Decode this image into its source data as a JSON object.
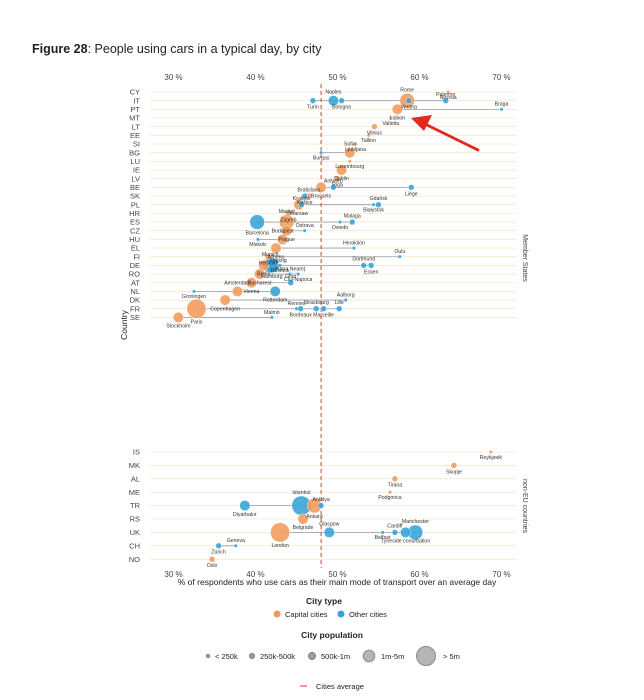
{
  "figure": {
    "label": "Figure 28",
    "caption": ": People using cars in a typical day, by city"
  },
  "colors": {
    "capital": "#f29a5b",
    "other": "#33a3d6",
    "average_line": "#e03a2a",
    "grid": "#efe3b8",
    "connector": "#9b9b9b",
    "arrow": "#e0291f"
  },
  "chart_data": {
    "type": "scatter",
    "xlabel": "% of respondents who use cars as their main mode of transport over an average day",
    "ylabel": "Country",
    "xlim": [
      25,
      73
    ],
    "xticks": [
      30,
      40,
      50,
      60,
      70
    ],
    "xtick_labels": [
      "30 %",
      "40 %",
      "50 %",
      "60 %",
      "70 %"
    ],
    "grid": "horizontal",
    "cities_average": 48,
    "groups": [
      {
        "label": "Member States",
        "countries": [
          "CY",
          "IT",
          "PT",
          "MT",
          "LT",
          "EE",
          "SI",
          "BG",
          "LU",
          "IE",
          "LV",
          "BE",
          "SK",
          "PL",
          "HR",
          "ES",
          "CZ",
          "HU",
          "EL",
          "FI",
          "DE",
          "RO",
          "AT",
          "NL",
          "DK",
          "FR",
          "SE"
        ]
      },
      {
        "label": "non-EU countries",
        "countries": [
          "IS",
          "MK",
          "AL",
          "ME",
          "TR",
          "RS",
          "UK",
          "CH",
          "NO"
        ]
      }
    ],
    "series": [
      {
        "name": "Capital cities",
        "points": [
          {
            "city": "Nicosia",
            "country": "CY",
            "x": 63.5,
            "size": 1
          },
          {
            "city": "Rome",
            "country": "IT",
            "x": 58.5,
            "size": 4
          },
          {
            "city": "Lisbon",
            "country": "PT",
            "x": 57.3,
            "size": 3
          },
          {
            "city": "Valletta",
            "country": "MT",
            "x": 56.5,
            "size": 1
          },
          {
            "city": "Vilnius",
            "country": "LT",
            "x": 54.5,
            "size": 2
          },
          {
            "city": "Tallinn",
            "country": "EE",
            "x": 53.8,
            "size": 1
          },
          {
            "city": "Ljubljana",
            "country": "SI",
            "x": 52.2,
            "size": 1
          },
          {
            "city": "Sofia",
            "country": "BG",
            "x": 51.5,
            "size": 3
          },
          {
            "city": "Luxembourg",
            "country": "LU",
            "x": 51.5,
            "size": 1
          },
          {
            "city": "Dublin",
            "country": "IE",
            "x": 50.5,
            "size": 3
          },
          {
            "city": "Riga",
            "country": "LV",
            "x": 50,
            "size": 2
          },
          {
            "city": "Brussels",
            "country": "BE",
            "x": 48,
            "size": 3
          },
          {
            "city": "Bratislava",
            "country": "SK",
            "x": 46.5,
            "size": 2
          },
          {
            "city": "Warsaw",
            "country": "PL",
            "x": 45.3,
            "size": 3
          },
          {
            "city": "Zagreb",
            "country": "HR",
            "x": 44,
            "size": 2
          },
          {
            "city": "Madrid",
            "country": "ES",
            "x": 43.8,
            "size": 4
          },
          {
            "city": "Prague",
            "country": "CZ",
            "x": 43.8,
            "size": 3
          },
          {
            "city": "Budapest",
            "country": "HU",
            "x": 43.3,
            "size": 3
          },
          {
            "city": "Athens",
            "country": "EL",
            "x": 42.5,
            "size": 3
          },
          {
            "city": "Helsinki",
            "country": "FI",
            "x": 41.5,
            "size": 2
          },
          {
            "city": "Berlin",
            "country": "DE",
            "x": 41,
            "size": 3
          },
          {
            "city": "Bucharest",
            "country": "RO",
            "x": 40.5,
            "size": 3
          },
          {
            "city": "Vienna",
            "country": "AT",
            "x": 39.5,
            "size": 3
          },
          {
            "city": "Amsterdam",
            "country": "NL",
            "x": 37.8,
            "size": 3
          },
          {
            "city": "Copenhagen",
            "country": "DK",
            "x": 36.3,
            "size": 3
          },
          {
            "city": "Paris",
            "country": "FR",
            "x": 32.8,
            "size": 5
          },
          {
            "city": "Stockholm",
            "country": "SE",
            "x": 30.6,
            "size": 3
          },
          {
            "city": "Reykjavik",
            "country": "IS",
            "x": 68.7,
            "size": 1
          },
          {
            "city": "Skopje",
            "country": "MK",
            "x": 64.2,
            "size": 2
          },
          {
            "city": "Tirana",
            "country": "AL",
            "x": 57,
            "size": 2
          },
          {
            "city": "Podgorica",
            "country": "ME",
            "x": 56.4,
            "size": 1
          },
          {
            "city": "Ankara",
            "country": "TR",
            "x": 47.2,
            "size": 4
          },
          {
            "city": "Belgrade",
            "country": "RS",
            "x": 45.8,
            "size": 3
          },
          {
            "city": "London",
            "country": "UK",
            "x": 43,
            "size": 5
          },
          {
            "city": "Oslo",
            "country": "NO",
            "x": 34.7,
            "size": 2
          }
        ]
      },
      {
        "name": "Other cities",
        "points": [
          {
            "city": "Turin",
            "country": "IT",
            "x": 47,
            "size": 2
          },
          {
            "city": "Naples",
            "country": "IT",
            "x": 49.5,
            "size": 3
          },
          {
            "city": "Bologna",
            "country": "IT",
            "x": 50.5,
            "size": 2
          },
          {
            "city": "Verona",
            "country": "IT",
            "x": 58.7,
            "size": 2
          },
          {
            "city": "Palermo",
            "country": "IT",
            "x": 63.2,
            "size": 2
          },
          {
            "city": "Braga",
            "country": "PT",
            "x": 70,
            "size": 1
          },
          {
            "city": "Burgas",
            "country": "BG",
            "x": 48,
            "size": 1
          },
          {
            "city": "Antwerp",
            "country": "BE",
            "x": 49.5,
            "size": 2
          },
          {
            "city": "Liège",
            "country": "BE",
            "x": 59,
            "size": 2
          },
          {
            "city": "Košice",
            "country": "SK",
            "x": 46,
            "size": 2
          },
          {
            "city": "Kraków",
            "country": "PL",
            "x": 45.6,
            "size": 2
          },
          {
            "city": "Białystok",
            "country": "PL",
            "x": 54.4,
            "size": 1
          },
          {
            "city": "Gdańsk",
            "country": "PL",
            "x": 55,
            "size": 2
          },
          {
            "city": "Barcelona",
            "country": "ES",
            "x": 40.2,
            "size": 4
          },
          {
            "city": "Oviedo",
            "country": "ES",
            "x": 50.3,
            "size": 1
          },
          {
            "city": "Malaga",
            "country": "ES",
            "x": 51.8,
            "size": 2
          },
          {
            "city": "Ostrava",
            "country": "CZ",
            "x": 46,
            "size": 1
          },
          {
            "city": "Miskolc",
            "country": "HU",
            "x": 40.3,
            "size": 1
          },
          {
            "city": "Heraklion",
            "country": "EL",
            "x": 52,
            "size": 1
          },
          {
            "city": "Oulu",
            "country": "FI",
            "x": 57.6,
            "size": 1
          },
          {
            "city": "Leipzig",
            "country": "DE",
            "x": 42.8,
            "size": 1
          },
          {
            "city": "Munich",
            "country": "DE",
            "x": 41.8,
            "size": 4
          },
          {
            "city": "Rostock",
            "country": "DE",
            "x": 43,
            "size": 1
          },
          {
            "city": "Dortmund",
            "country": "DE",
            "x": 53.2,
            "size": 2
          },
          {
            "city": "Essen",
            "country": "DE",
            "x": 54.1,
            "size": 2
          },
          {
            "city": "Hamburg",
            "country": "DE",
            "x": 42,
            "size": 4
          },
          {
            "city": "Cluj-Napoca",
            "country": "RO",
            "x": 45.2,
            "size": 1
          },
          {
            "city": "Piatra Neamț",
            "country": "RO",
            "x": 44.2,
            "size": 1
          },
          {
            "city": "Graz",
            "country": "AT",
            "x": 44.3,
            "size": 2
          },
          {
            "city": "Groningen",
            "country": "NL",
            "x": 32.5,
            "size": 1
          },
          {
            "city": "Rotterdam",
            "country": "NL",
            "x": 42.4,
            "size": 3
          },
          {
            "city": "Aalborg",
            "country": "DK",
            "x": 51,
            "size": 1
          },
          {
            "city": "Bordeaux",
            "country": "FR",
            "x": 45.5,
            "size": 2
          },
          {
            "city": "Rennes",
            "country": "FR",
            "x": 45,
            "size": 1
          },
          {
            "city": "Strasbourg",
            "country": "FR",
            "x": 47.4,
            "size": 2
          },
          {
            "city": "Marseille",
            "country": "FR",
            "x": 48.3,
            "size": 2
          },
          {
            "city": "Lille",
            "country": "FR",
            "x": 50.2,
            "size": 2
          },
          {
            "city": "Malmö",
            "country": "SE",
            "x": 42,
            "size": 1
          },
          {
            "city": "Istanbul",
            "country": "TR",
            "x": 45.6,
            "size": 5
          },
          {
            "city": "Antalya",
            "country": "TR",
            "x": 48,
            "size": 2
          },
          {
            "city": "Diyarbakır",
            "country": "TR",
            "x": 38.7,
            "size": 3
          },
          {
            "city": "Glasgow",
            "country": "UK",
            "x": 49,
            "size": 3
          },
          {
            "city": "Belfast",
            "country": "UK",
            "x": 55.5,
            "size": 1
          },
          {
            "city": "Cardiff",
            "country": "UK",
            "x": 57,
            "size": 2
          },
          {
            "city": "Tyneside conurbation",
            "country": "UK",
            "x": 58.3,
            "size": 3
          },
          {
            "city": "Manchester",
            "country": "UK",
            "x": 59.5,
            "size": 4
          },
          {
            "city": "Zürich",
            "country": "CH",
            "x": 35.5,
            "size": 2
          },
          {
            "city": "Geneva",
            "country": "CH",
            "x": 37.6,
            "size": 1
          }
        ]
      }
    ]
  },
  "legend": {
    "type_title": "City type",
    "type_items": [
      "Capital cities",
      "Other cities"
    ],
    "pop_title": "City population",
    "pop_items": [
      "< 250k",
      "250k-500k",
      "500k-1m",
      "1m-5m",
      "> 5m"
    ],
    "avg_label": "Cities average"
  }
}
